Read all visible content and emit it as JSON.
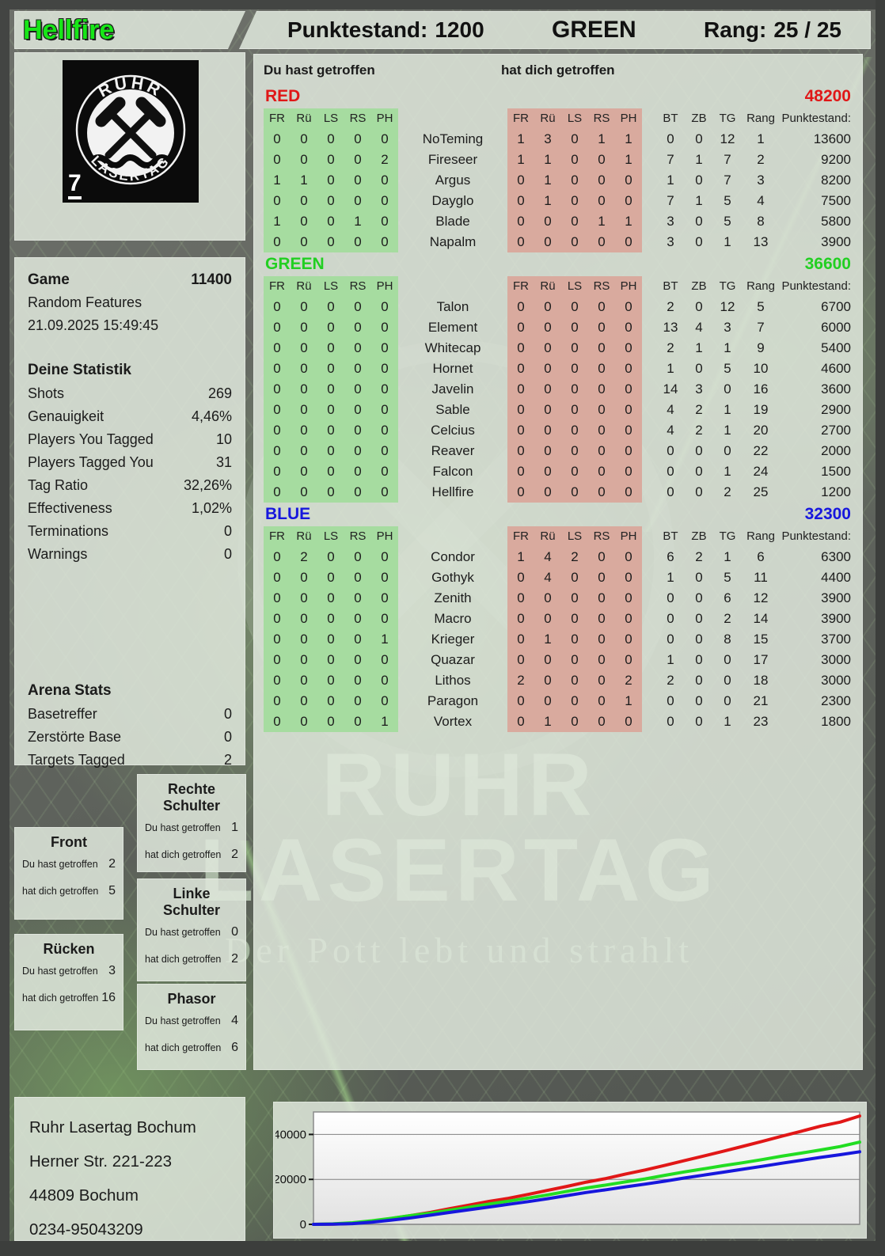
{
  "header": {
    "player": "Hellfire",
    "player_color": "#17e617",
    "punktestand_label": "Punktestand:",
    "punktestand": "1200",
    "team": "GREEN",
    "rang_label": "Rang:",
    "rang": "25 / 25"
  },
  "logo": {
    "arc_top": "RUHR",
    "arc_bottom": "LASERTAG",
    "corner": "7"
  },
  "hit_labels": {
    "you": "Du hast getroffen",
    "them": "hat dich getroffen"
  },
  "table_headers": {
    "hit": [
      "FR",
      "Rü",
      "LS",
      "RS",
      "PH"
    ],
    "stats": [
      "BT",
      "ZB",
      "TG",
      "Rang",
      "Punktestand:"
    ]
  },
  "teams": [
    {
      "name": "RED",
      "color": "#e01717",
      "total": "48200",
      "players": [
        {
          "name": "NoTeming",
          "you": [
            0,
            0,
            0,
            0,
            0
          ],
          "them": [
            1,
            3,
            0,
            1,
            1
          ],
          "bt": 0,
          "zb": 0,
          "tg": 12,
          "rang": 1,
          "punkte": "13600"
        },
        {
          "name": "Fireseer",
          "you": [
            0,
            0,
            0,
            0,
            2
          ],
          "them": [
            1,
            1,
            0,
            0,
            1
          ],
          "bt": 7,
          "zb": 1,
          "tg": 7,
          "rang": 2,
          "punkte": "9200"
        },
        {
          "name": "Argus",
          "you": [
            1,
            1,
            0,
            0,
            0
          ],
          "them": [
            0,
            1,
            0,
            0,
            0
          ],
          "bt": 1,
          "zb": 0,
          "tg": 7,
          "rang": 3,
          "punkte": "8200"
        },
        {
          "name": "Dayglo",
          "you": [
            0,
            0,
            0,
            0,
            0
          ],
          "them": [
            0,
            1,
            0,
            0,
            0
          ],
          "bt": 7,
          "zb": 1,
          "tg": 5,
          "rang": 4,
          "punkte": "7500"
        },
        {
          "name": "Blade",
          "you": [
            1,
            0,
            0,
            1,
            0
          ],
          "them": [
            0,
            0,
            0,
            1,
            1
          ],
          "bt": 3,
          "zb": 0,
          "tg": 5,
          "rang": 8,
          "punkte": "5800"
        },
        {
          "name": "Napalm",
          "you": [
            0,
            0,
            0,
            0,
            0
          ],
          "them": [
            0,
            0,
            0,
            0,
            0
          ],
          "bt": 3,
          "zb": 0,
          "tg": 1,
          "rang": 13,
          "punkte": "3900"
        }
      ]
    },
    {
      "name": "GREEN",
      "color": "#22cf22",
      "total": "36600",
      "players": [
        {
          "name": "Talon",
          "you": [
            0,
            0,
            0,
            0,
            0
          ],
          "them": [
            0,
            0,
            0,
            0,
            0
          ],
          "bt": 2,
          "zb": 0,
          "tg": 12,
          "rang": 5,
          "punkte": "6700"
        },
        {
          "name": "Element",
          "you": [
            0,
            0,
            0,
            0,
            0
          ],
          "them": [
            0,
            0,
            0,
            0,
            0
          ],
          "bt": 13,
          "zb": 4,
          "tg": 3,
          "rang": 7,
          "punkte": "6000"
        },
        {
          "name": "Whitecap",
          "you": [
            0,
            0,
            0,
            0,
            0
          ],
          "them": [
            0,
            0,
            0,
            0,
            0
          ],
          "bt": 2,
          "zb": 1,
          "tg": 1,
          "rang": 9,
          "punkte": "5400"
        },
        {
          "name": "Hornet",
          "you": [
            0,
            0,
            0,
            0,
            0
          ],
          "them": [
            0,
            0,
            0,
            0,
            0
          ],
          "bt": 1,
          "zb": 0,
          "tg": 5,
          "rang": 10,
          "punkte": "4600"
        },
        {
          "name": "Javelin",
          "you": [
            0,
            0,
            0,
            0,
            0
          ],
          "them": [
            0,
            0,
            0,
            0,
            0
          ],
          "bt": 14,
          "zb": 3,
          "tg": 0,
          "rang": 16,
          "punkte": "3600"
        },
        {
          "name": "Sable",
          "you": [
            0,
            0,
            0,
            0,
            0
          ],
          "them": [
            0,
            0,
            0,
            0,
            0
          ],
          "bt": 4,
          "zb": 2,
          "tg": 1,
          "rang": 19,
          "punkte": "2900"
        },
        {
          "name": "Celcius",
          "you": [
            0,
            0,
            0,
            0,
            0
          ],
          "them": [
            0,
            0,
            0,
            0,
            0
          ],
          "bt": 4,
          "zb": 2,
          "tg": 1,
          "rang": 20,
          "punkte": "2700"
        },
        {
          "name": "Reaver",
          "you": [
            0,
            0,
            0,
            0,
            0
          ],
          "them": [
            0,
            0,
            0,
            0,
            0
          ],
          "bt": 0,
          "zb": 0,
          "tg": 0,
          "rang": 22,
          "punkte": "2000"
        },
        {
          "name": "Falcon",
          "you": [
            0,
            0,
            0,
            0,
            0
          ],
          "them": [
            0,
            0,
            0,
            0,
            0
          ],
          "bt": 0,
          "zb": 0,
          "tg": 1,
          "rang": 24,
          "punkte": "1500"
        },
        {
          "name": "Hellfire",
          "you": [
            0,
            0,
            0,
            0,
            0
          ],
          "them": [
            0,
            0,
            0,
            0,
            0
          ],
          "bt": 0,
          "zb": 0,
          "tg": 2,
          "rang": 25,
          "punkte": "1200"
        }
      ]
    },
    {
      "name": "BLUE",
      "color": "#1717dd",
      "total": "32300",
      "players": [
        {
          "name": "Condor",
          "you": [
            0,
            2,
            0,
            0,
            0
          ],
          "them": [
            1,
            4,
            2,
            0,
            0
          ],
          "bt": 6,
          "zb": 2,
          "tg": 1,
          "rang": 6,
          "punkte": "6300"
        },
        {
          "name": "Gothyk",
          "you": [
            0,
            0,
            0,
            0,
            0
          ],
          "them": [
            0,
            4,
            0,
            0,
            0
          ],
          "bt": 1,
          "zb": 0,
          "tg": 5,
          "rang": 11,
          "punkte": "4400"
        },
        {
          "name": "Zenith",
          "you": [
            0,
            0,
            0,
            0,
            0
          ],
          "them": [
            0,
            0,
            0,
            0,
            0
          ],
          "bt": 0,
          "zb": 0,
          "tg": 6,
          "rang": 12,
          "punkte": "3900"
        },
        {
          "name": "Macro",
          "you": [
            0,
            0,
            0,
            0,
            0
          ],
          "them": [
            0,
            0,
            0,
            0,
            0
          ],
          "bt": 0,
          "zb": 0,
          "tg": 2,
          "rang": 14,
          "punkte": "3900"
        },
        {
          "name": "Krieger",
          "you": [
            0,
            0,
            0,
            0,
            1
          ],
          "them": [
            0,
            1,
            0,
            0,
            0
          ],
          "bt": 0,
          "zb": 0,
          "tg": 8,
          "rang": 15,
          "punkte": "3700"
        },
        {
          "name": "Quazar",
          "you": [
            0,
            0,
            0,
            0,
            0
          ],
          "them": [
            0,
            0,
            0,
            0,
            0
          ],
          "bt": 1,
          "zb": 0,
          "tg": 0,
          "rang": 17,
          "punkte": "3000"
        },
        {
          "name": "Lithos",
          "you": [
            0,
            0,
            0,
            0,
            0
          ],
          "them": [
            2,
            0,
            0,
            0,
            2
          ],
          "bt": 2,
          "zb": 0,
          "tg": 0,
          "rang": 18,
          "punkte": "3000"
        },
        {
          "name": "Paragon",
          "you": [
            0,
            0,
            0,
            0,
            0
          ],
          "them": [
            0,
            0,
            0,
            0,
            1
          ],
          "bt": 0,
          "zb": 0,
          "tg": 0,
          "rang": 21,
          "punkte": "2300"
        },
        {
          "name": "Vortex",
          "you": [
            0,
            0,
            0,
            0,
            1
          ],
          "them": [
            0,
            1,
            0,
            0,
            0
          ],
          "bt": 0,
          "zb": 0,
          "tg": 1,
          "rang": 23,
          "punkte": "1800"
        }
      ]
    }
  ],
  "sidebar": {
    "game_label": "Game",
    "game_value": "11400",
    "mode": "Random Features",
    "datetime": "21.09.2025 15:49:45",
    "stats_title": "Deine Statistik",
    "stats_rows": [
      [
        "Shots",
        "269"
      ],
      [
        "Genauigkeit",
        "4,46%"
      ],
      [
        "Players You Tagged",
        "10"
      ],
      [
        "Players Tagged You",
        "31"
      ],
      [
        "Tag Ratio",
        "32,26%"
      ],
      [
        "Effectiveness",
        "1,02%"
      ],
      [
        "Terminations",
        "0"
      ],
      [
        "Warnings",
        "0"
      ]
    ],
    "arena_title": "Arena Stats",
    "arena_rows": [
      [
        "Basetreffer",
        "0"
      ],
      [
        "Zerstörte Base",
        "0"
      ],
      [
        "Targets Tagged",
        "2"
      ]
    ]
  },
  "zones": [
    {
      "title": "Rechte Schulter",
      "you": "1",
      "them": "2"
    },
    {
      "title": "Front",
      "you": "2",
      "them": "5"
    },
    {
      "title": "Linke Schulter",
      "you": "0",
      "them": "2"
    },
    {
      "title": "Rücken",
      "you": "3",
      "them": "16"
    },
    {
      "title": "Phasor",
      "you": "4",
      "them": "6"
    }
  ],
  "address": [
    "Ruhr Lasertag Bochum",
    "Herner Str. 221-223",
    "44809 Bochum",
    "0234-95043209"
  ],
  "watermark": {
    "line1": "RUHR",
    "line2": "LASERTAG",
    "tagline": "Der Pott lebt und strahlt"
  },
  "chart_data": {
    "type": "line",
    "title": "",
    "xlabel": "",
    "ylabel": "",
    "ylim": [
      0,
      50000
    ],
    "yticks": [
      0,
      20000,
      40000
    ],
    "grid": true,
    "legend": "none",
    "series": [
      {
        "name": "RED",
        "color": "#e11717",
        "values": [
          0,
          100,
          400,
          1300,
          2600,
          3900,
          5300,
          7000,
          8600,
          10200,
          11600,
          13300,
          15100,
          16900,
          18800,
          20400,
          22400,
          24200,
          26200,
          28300,
          30400,
          32500,
          34700,
          36900,
          39200,
          41400,
          43700,
          45500,
          48200
        ]
      },
      {
        "name": "GREEN",
        "color": "#22dd22",
        "values": [
          0,
          200,
          700,
          1600,
          2700,
          3900,
          5000,
          6300,
          7600,
          9000,
          10300,
          11700,
          13100,
          14700,
          16200,
          17500,
          18900,
          20200,
          21800,
          23300,
          24700,
          26100,
          27400,
          28800,
          30300,
          31700,
          33100,
          34600,
          36600
        ]
      },
      {
        "name": "BLUE",
        "color": "#1717dd",
        "values": [
          0,
          100,
          300,
          1000,
          1900,
          2900,
          4100,
          5300,
          6500,
          7700,
          8900,
          10100,
          11400,
          12800,
          14200,
          15400,
          16700,
          17900,
          19200,
          20600,
          21900,
          23200,
          24500,
          25800,
          27200,
          28500,
          29800,
          31000,
          32300
        ]
      }
    ]
  }
}
